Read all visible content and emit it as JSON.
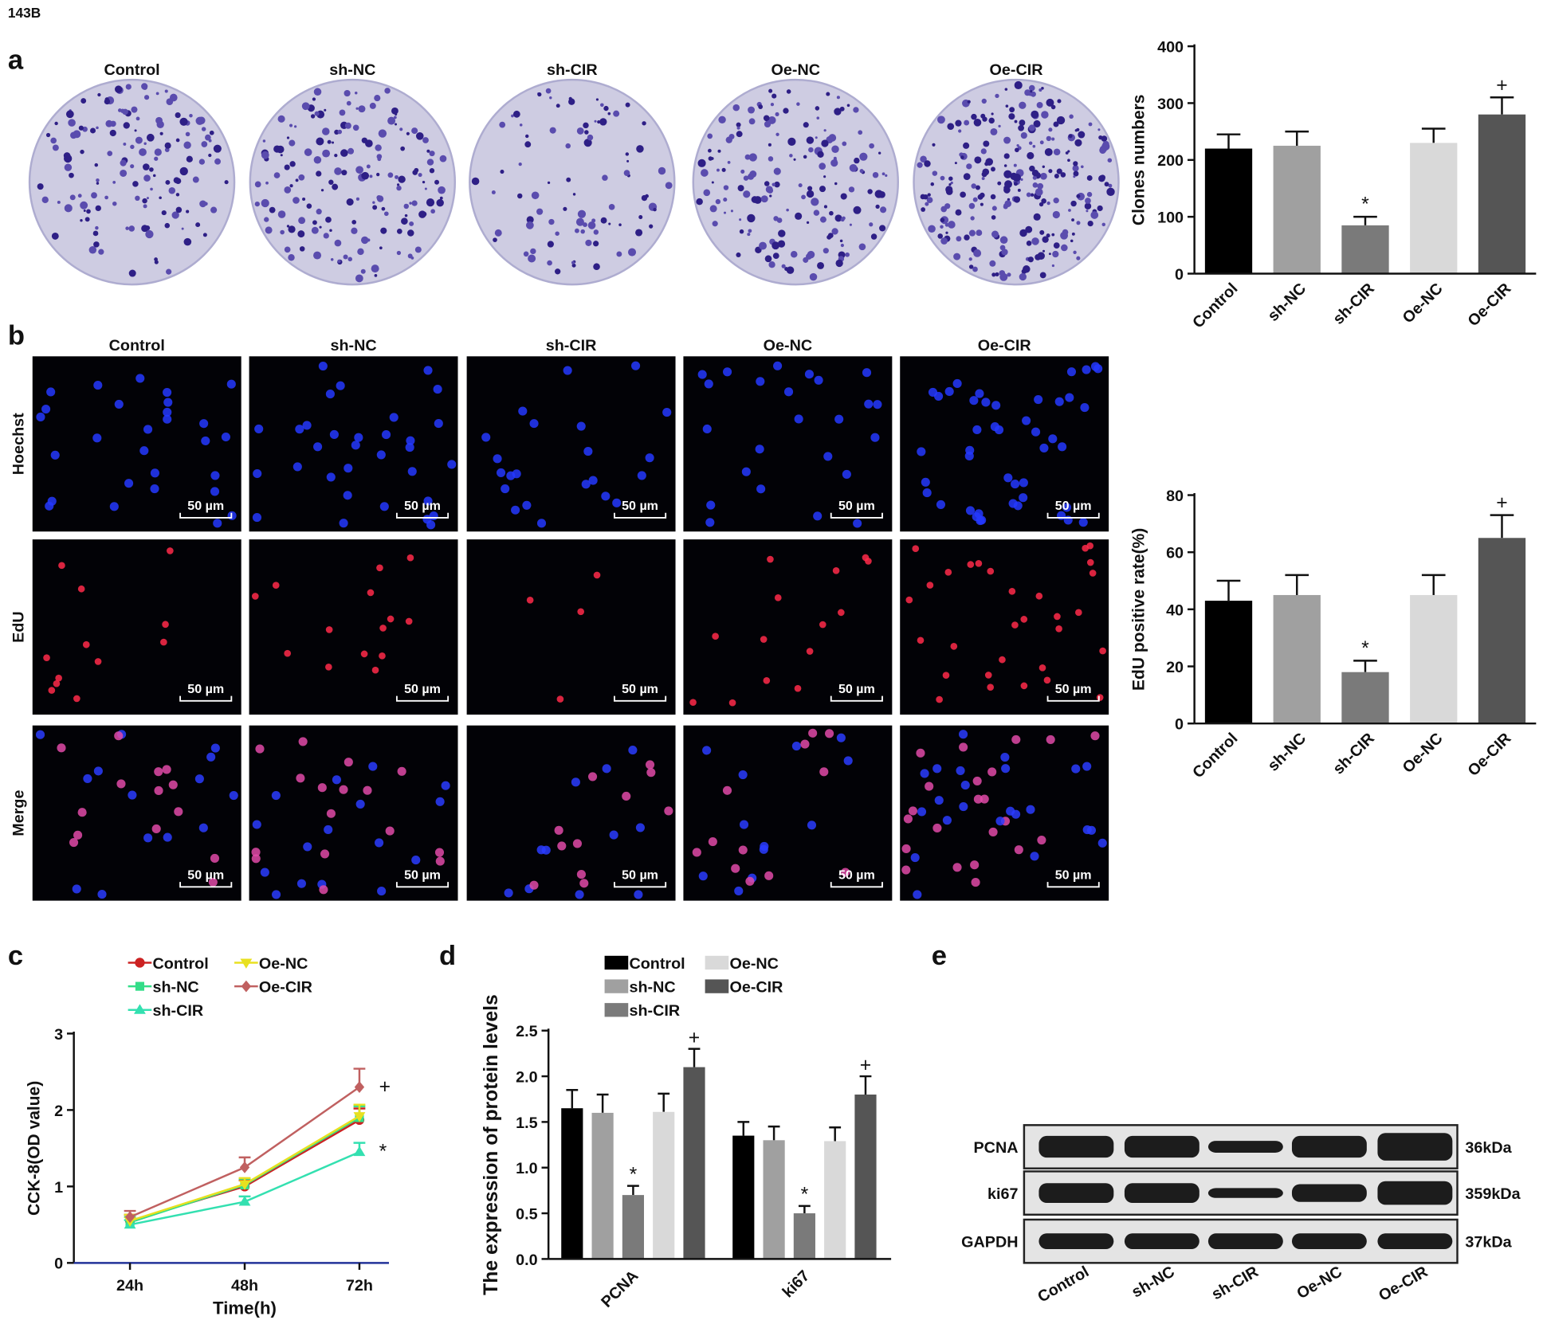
{
  "cell_line": "143B",
  "panel_labels": [
    "a",
    "b",
    "c",
    "d",
    "e"
  ],
  "groups": [
    "Control",
    "sh-NC",
    "sh-CIR",
    "Oe-NC",
    "Oe-CIR"
  ],
  "stains": [
    "Hoechst",
    "EdU",
    "Merge"
  ],
  "scale_bar": "50 µm",
  "chart_data": [
    {
      "type": "bar",
      "ylabel": "Clones numbers",
      "categories": [
        "Control",
        "sh-NC",
        "sh-CIR",
        "Oe-NC",
        "Oe-CIR"
      ],
      "values": [
        220,
        225,
        85,
        230,
        280
      ],
      "errors": [
        25,
        25,
        15,
        25,
        30
      ],
      "annotations": [
        null,
        null,
        "*",
        null,
        "+"
      ],
      "colors": [
        "#000000",
        "#a0a0a0",
        "#7a7a7a",
        "#d9d9d9",
        "#555555"
      ],
      "ylim": [
        0,
        400
      ],
      "yticks": [
        0,
        100,
        200,
        300,
        400
      ]
    },
    {
      "type": "bar",
      "ylabel": "EdU positive rate(%)",
      "categories": [
        "Control",
        "sh-NC",
        "sh-CIR",
        "Oe-NC",
        "Oe-CIR"
      ],
      "values": [
        43,
        45,
        18,
        45,
        65
      ],
      "errors": [
        7,
        7,
        4,
        7,
        8
      ],
      "annotations": [
        null,
        null,
        "*",
        null,
        "+"
      ],
      "colors": [
        "#000000",
        "#a0a0a0",
        "#7a7a7a",
        "#d9d9d9",
        "#555555"
      ],
      "ylim": [
        0,
        80
      ],
      "yticks": [
        0,
        20,
        40,
        60,
        80
      ]
    },
    {
      "type": "line",
      "xlabel": "Time(h)",
      "ylabel": "CCK-8(OD value)",
      "categories": [
        "24h",
        "48h",
        "72h"
      ],
      "ylim": [
        0,
        3
      ],
      "yticks": [
        0,
        1,
        2,
        3
      ],
      "series": [
        {
          "name": "Control",
          "color": "#cc2222",
          "marker": "circle",
          "values": [
            0.55,
            1.0,
            1.87
          ],
          "errors": [
            0.08,
            0.08,
            0.15
          ]
        },
        {
          "name": "sh-NC",
          "color": "#33dd88",
          "marker": "square",
          "values": [
            0.53,
            1.02,
            1.9
          ],
          "errors": [
            0.07,
            0.08,
            0.15
          ]
        },
        {
          "name": "sh-CIR",
          "color": "#33e0b0",
          "marker": "triangle-up",
          "values": [
            0.5,
            0.8,
            1.45
          ],
          "errors": [
            0.06,
            0.07,
            0.12
          ],
          "annotation": "*"
        },
        {
          "name": "Oe-NC",
          "color": "#e8e020",
          "marker": "triangle-down",
          "values": [
            0.55,
            1.03,
            1.92
          ],
          "errors": [
            0.08,
            0.08,
            0.15
          ]
        },
        {
          "name": "Oe-CIR",
          "color": "#c06060",
          "marker": "diamond",
          "values": [
            0.6,
            1.25,
            2.3
          ],
          "errors": [
            0.08,
            0.13,
            0.24
          ],
          "annotation": "+"
        }
      ]
    },
    {
      "type": "grouped_bar",
      "ylabel": "The expression of protein levels",
      "categories": [
        "PCNA",
        "ki67"
      ],
      "ylim": [
        0,
        2.5
      ],
      "yticks": [
        {
          "value": 0,
          "label": "0.0"
        },
        0.5,
        {
          "value": 1,
          "label": "1.0"
        },
        1.5,
        {
          "value": 2,
          "label": "2.0"
        },
        2.5
      ],
      "series": [
        {
          "name": "Control",
          "color": "#000000",
          "values": [
            1.65,
            1.35
          ],
          "errors": [
            0.2,
            0.15
          ]
        },
        {
          "name": "sh-NC",
          "color": "#a0a0a0",
          "values": [
            1.6,
            1.3
          ],
          "errors": [
            0.2,
            0.15
          ]
        },
        {
          "name": "sh-CIR",
          "color": "#7a7a7a",
          "values": [
            0.7,
            0.5
          ],
          "errors": [
            0.1,
            0.08
          ],
          "annotation": "*"
        },
        {
          "name": "Oe-NC",
          "color": "#d9d9d9",
          "values": [
            1.61,
            1.29
          ],
          "errors": [
            0.2,
            0.15
          ]
        },
        {
          "name": "Oe-CIR",
          "color": "#555555",
          "values": [
            2.1,
            1.8
          ],
          "errors": [
            0.2,
            0.2
          ],
          "annotation": "+"
        }
      ]
    }
  ],
  "western": {
    "proteins": [
      "PCNA",
      "ki67",
      "GAPDH"
    ],
    "sizes": [
      "36kDa",
      "359kDa",
      "37kDa"
    ],
    "lanes": [
      "Control",
      "sh-NC",
      "sh-CIR",
      "Oe-NC",
      "Oe-CIR"
    ]
  }
}
